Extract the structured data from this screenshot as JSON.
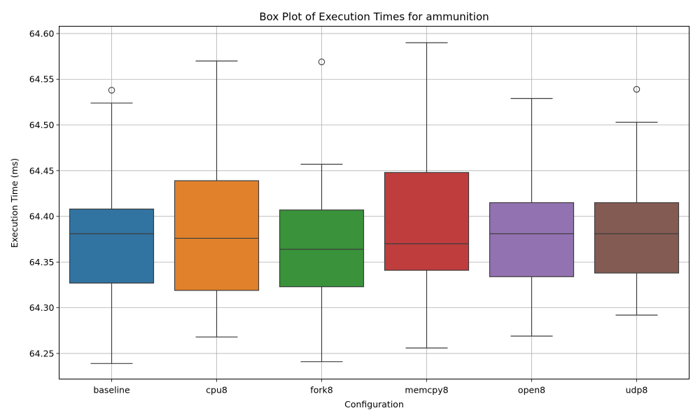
{
  "chart_data": {
    "type": "box",
    "title": "Box Plot of Execution Times for ammunition",
    "xlabel": "Configuration",
    "ylabel": "Execution Time (ms)",
    "ylim": [
      64.222,
      64.608
    ],
    "yticks": [
      64.25,
      64.3,
      64.35,
      64.4,
      64.45,
      64.5,
      64.55,
      64.6
    ],
    "ytick_labels": [
      "64.25",
      "64.30",
      "64.35",
      "64.40",
      "64.45",
      "64.50",
      "64.55",
      "64.60"
    ],
    "grid": true,
    "categories": [
      "baseline",
      "cpu8",
      "fork8",
      "memcpy8",
      "open8",
      "udp8"
    ],
    "boxes": [
      {
        "name": "baseline",
        "whislo": 64.239,
        "q1": 64.327,
        "med": 64.381,
        "q3": 64.408,
        "whishi": 64.524,
        "fliers": [
          64.538
        ],
        "color": "#3274a1"
      },
      {
        "name": "cpu8",
        "whislo": 64.268,
        "q1": 64.319,
        "med": 64.376,
        "q3": 64.439,
        "whishi": 64.57,
        "fliers": [],
        "color": "#e1812c"
      },
      {
        "name": "fork8",
        "whislo": 64.241,
        "q1": 64.323,
        "med": 64.364,
        "q3": 64.407,
        "whishi": 64.457,
        "fliers": [
          64.569
        ],
        "color": "#3a923a"
      },
      {
        "name": "memcpy8",
        "whislo": 64.256,
        "q1": 64.341,
        "med": 64.37,
        "q3": 64.448,
        "whishi": 64.59,
        "fliers": [],
        "color": "#c03d3e"
      },
      {
        "name": "open8",
        "whislo": 64.269,
        "q1": 64.334,
        "med": 64.381,
        "q3": 64.415,
        "whishi": 64.529,
        "fliers": [],
        "color": "#9372b2"
      },
      {
        "name": "udp8",
        "whislo": 64.292,
        "q1": 64.338,
        "med": 64.381,
        "q3": 64.415,
        "whishi": 64.503,
        "fliers": [
          64.539
        ],
        "color": "#845b53"
      }
    ]
  }
}
